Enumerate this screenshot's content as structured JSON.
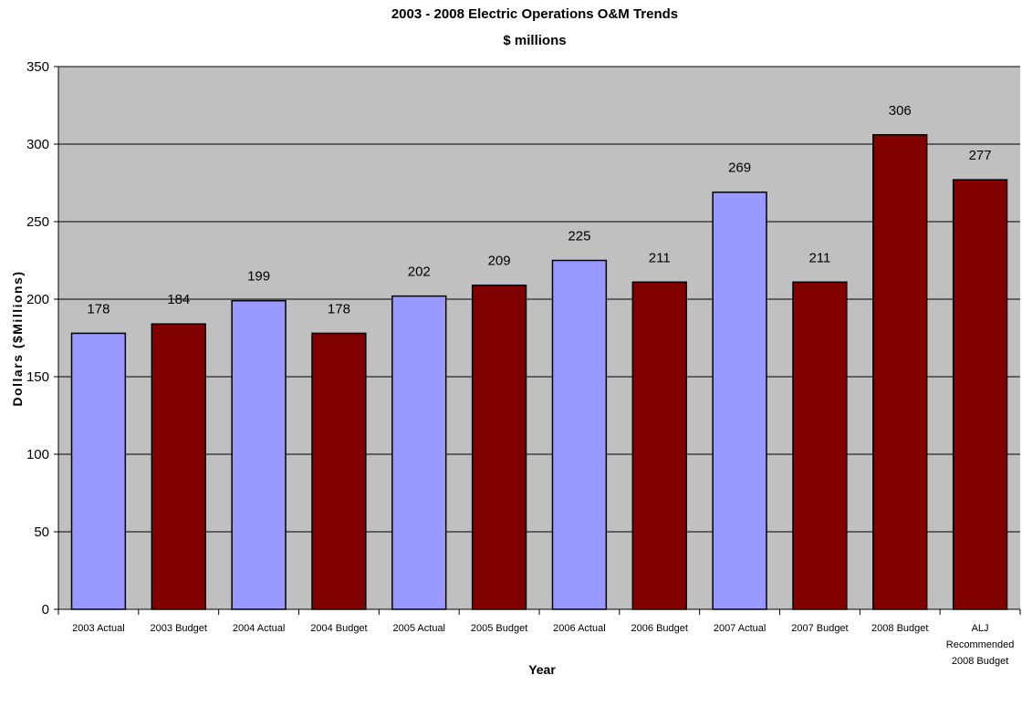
{
  "chart_data": {
    "type": "bar",
    "title": "2003 - 2008 Electric Operations O&M Trends",
    "subtitle": "$ millions",
    "xlabel": "Year",
    "ylabel": "Dollars ($Millions)",
    "ylim": [
      0,
      350
    ],
    "yticks": [
      "0",
      "50",
      "100",
      "150",
      "200",
      "250",
      "300",
      "350"
    ],
    "grid": true,
    "legend": "none",
    "colors": {
      "actual": "#9999ff",
      "budget": "#800000",
      "plot_background": "#c0c0c0"
    },
    "categories": [
      "2003 Actual",
      "2003 Budget",
      "2004 Actual",
      "2004 Budget",
      "2005 Actual",
      "2005 Budget",
      "2006 Actual",
      "2006 Budget",
      "2007 Actual",
      "2007 Budget",
      "2008 Budget",
      [
        "ALJ",
        "Recommended",
        "2008 Budget"
      ]
    ],
    "values": [
      178,
      184,
      199,
      178,
      202,
      209,
      225,
      211,
      269,
      211,
      306,
      277
    ],
    "value_labels": [
      "178",
      "184",
      "199",
      "178",
      "202",
      "209",
      "225",
      "211",
      "269",
      "211",
      "306",
      "277"
    ],
    "bar_kinds": [
      "actual",
      "budget",
      "actual",
      "budget",
      "actual",
      "budget",
      "actual",
      "budget",
      "actual",
      "budget",
      "budget",
      "budget"
    ]
  }
}
